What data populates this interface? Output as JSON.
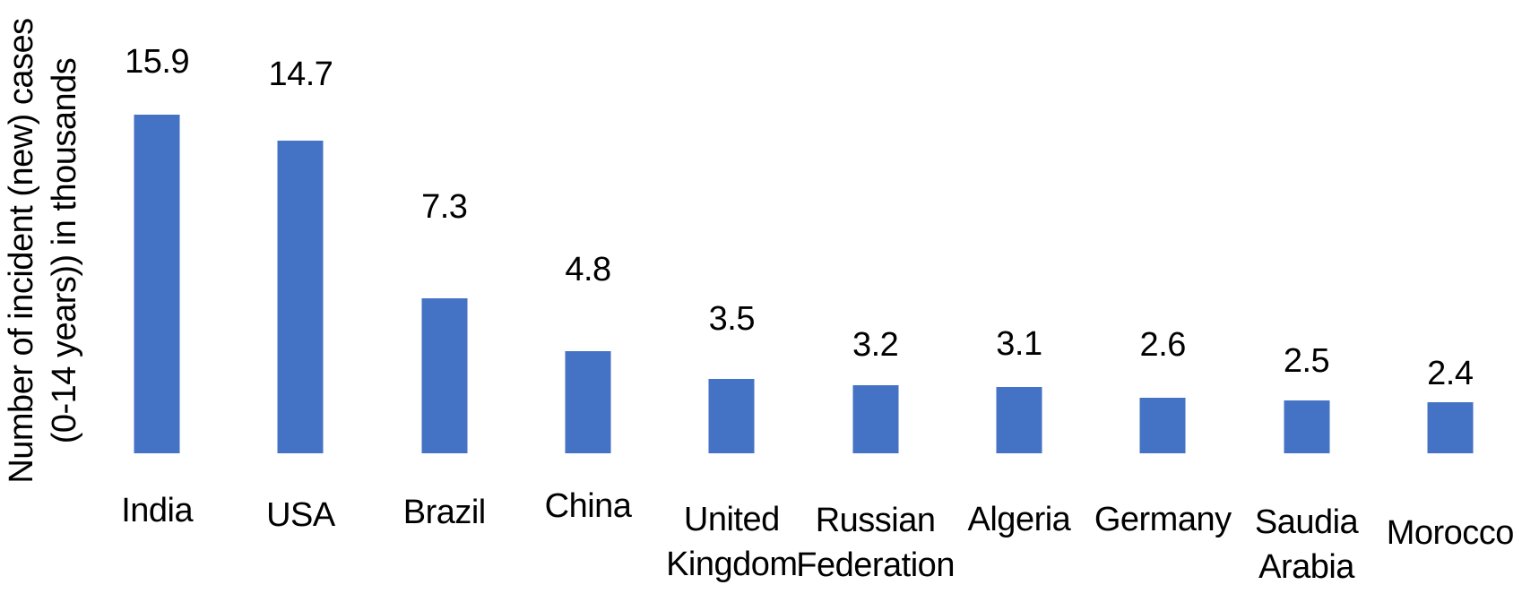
{
  "chart_data": {
    "type": "bar",
    "title": "",
    "xlabel": "",
    "ylabel": "Number of incident (new) cases (0-14 years)) in thousands",
    "ylabel_line1": "Number of incident (new) cases",
    "ylabel_line2": "(0-14 years)) in thousands",
    "categories": [
      "India",
      "USA",
      "Brazil",
      "China",
      "United Kingdom",
      "Russian Federation",
      "Algeria",
      "Germany",
      "Saudia Arabia",
      "Morocco"
    ],
    "values": [
      15.9,
      14.7,
      7.3,
      4.8,
      3.5,
      3.2,
      3.1,
      2.6,
      2.5,
      2.4
    ],
    "data_labels": "above-bars",
    "grid": false,
    "legend": false,
    "y_axis_ticks_visible": false,
    "ylim": [
      0,
      16
    ],
    "bar_color": "#4472C4",
    "text_color": "#000000",
    "background_color": "#FFFFFF"
  }
}
